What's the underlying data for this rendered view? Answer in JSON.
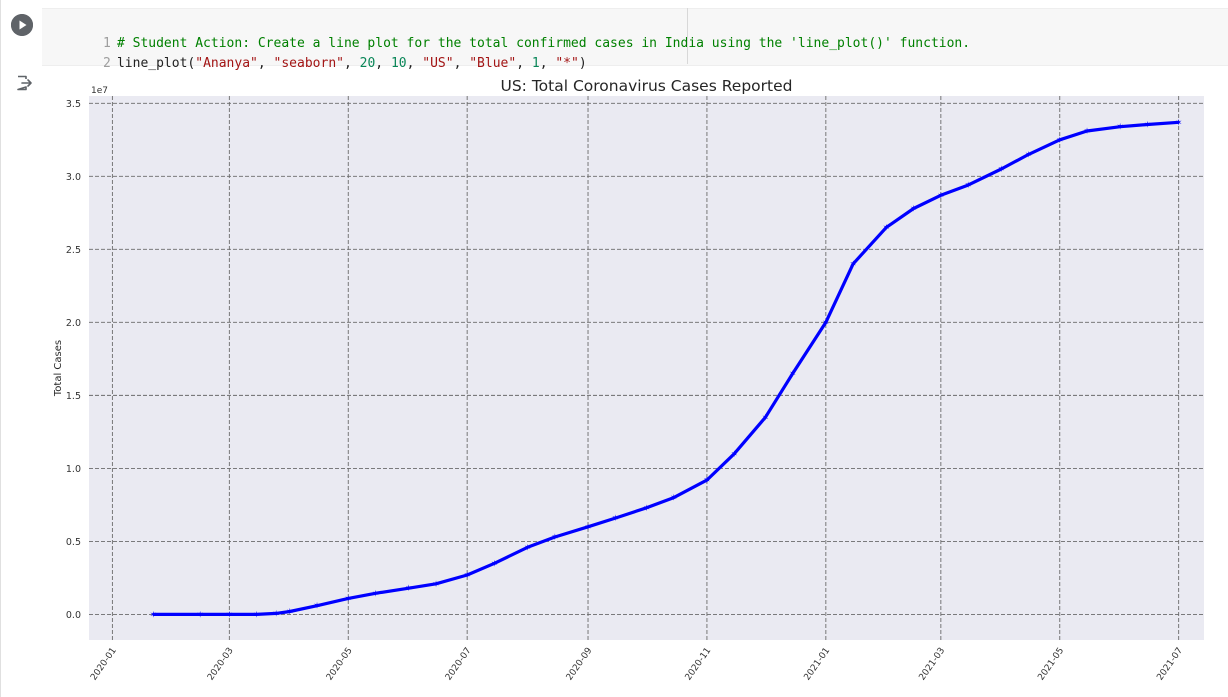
{
  "cell": {
    "code_lines": [
      {
        "number": "1",
        "comment": "# Student Action: Create a line plot for the total confirmed cases in India using the 'line_plot()' function."
      },
      {
        "number": "2",
        "fn": "line_plot(",
        "args": [
          {
            "kind": "str",
            "text": "\"Ananya\""
          },
          {
            "kind": "punc",
            "text": ", "
          },
          {
            "kind": "str",
            "text": "\"seaborn\""
          },
          {
            "kind": "punc",
            "text": ", "
          },
          {
            "kind": "num",
            "text": "20"
          },
          {
            "kind": "punc",
            "text": ", "
          },
          {
            "kind": "num",
            "text": "10"
          },
          {
            "kind": "punc",
            "text": ", "
          },
          {
            "kind": "str",
            "text": "\"US\""
          },
          {
            "kind": "punc",
            "text": ", "
          },
          {
            "kind": "str",
            "text": "\"Blue\""
          },
          {
            "kind": "punc",
            "text": ", "
          },
          {
            "kind": "num",
            "text": "1"
          },
          {
            "kind": "punc",
            "text": ", "
          },
          {
            "kind": "str",
            "text": "\"*\""
          },
          {
            "kind": "punc",
            "text": ")"
          }
        ]
      }
    ],
    "run_icon": "play-icon",
    "output_icon": "output-redirect-icon"
  },
  "chart_data": {
    "type": "line",
    "title": "US: Total Coronavirus Cases Reported",
    "xlabel": "",
    "ylabel": "Total Cases",
    "y_offset_label": "1e7",
    "x_tick_labels": [
      "2020-01",
      "2020-03",
      "2020-05",
      "2020-07",
      "2020-09",
      "2020-11",
      "2021-01",
      "2021-03",
      "2021-05",
      "2021-07"
    ],
    "x_ticks": [
      "2020-01-01",
      "2020-03-01",
      "2020-05-01",
      "2020-07-01",
      "2020-09-01",
      "2020-11-01",
      "2021-01-01",
      "2021-03-01",
      "2021-05-01",
      "2021-07-01"
    ],
    "y_tick_labels": [
      "0.0",
      "0.5",
      "1.0",
      "1.5",
      "2.0",
      "2.5",
      "3.0",
      "3.5"
    ],
    "y_ticks": [
      0,
      5000000,
      10000000,
      15000000,
      20000000,
      25000000,
      30000000,
      35000000
    ],
    "xlim": [
      "2019-12-20",
      "2021-07-14"
    ],
    "ylim": [
      -1750000,
      35500000
    ],
    "grid": true,
    "style": "seaborn",
    "line_color": "#0000ff",
    "marker": "*",
    "series": [
      {
        "points": [
          [
            "2020-01-22",
            0
          ],
          [
            "2020-02-15",
            0
          ],
          [
            "2020-03-01",
            100
          ],
          [
            "2020-03-15",
            5000
          ],
          [
            "2020-03-25",
            70000
          ],
          [
            "2020-04-01",
            200000
          ],
          [
            "2020-04-15",
            600000
          ],
          [
            "2020-05-01",
            1100000
          ],
          [
            "2020-05-15",
            1450000
          ],
          [
            "2020-06-01",
            1800000
          ],
          [
            "2020-06-15",
            2100000
          ],
          [
            "2020-07-01",
            2700000
          ],
          [
            "2020-07-15",
            3500000
          ],
          [
            "2020-08-01",
            4600000
          ],
          [
            "2020-08-15",
            5300000
          ],
          [
            "2020-09-01",
            6000000
          ],
          [
            "2020-09-15",
            6600000
          ],
          [
            "2020-10-01",
            7300000
          ],
          [
            "2020-10-15",
            8000000
          ],
          [
            "2020-11-01",
            9200000
          ],
          [
            "2020-11-15",
            11000000
          ],
          [
            "2020-12-01",
            13500000
          ],
          [
            "2020-12-15",
            16500000
          ],
          [
            "2021-01-01",
            20000000
          ],
          [
            "2021-01-15",
            24000000
          ],
          [
            "2021-02-01",
            26500000
          ],
          [
            "2021-02-15",
            27800000
          ],
          [
            "2021-03-01",
            28700000
          ],
          [
            "2021-03-15",
            29400000
          ],
          [
            "2021-04-01",
            30500000
          ],
          [
            "2021-04-15",
            31500000
          ],
          [
            "2021-05-01",
            32500000
          ],
          [
            "2021-05-15",
            33100000
          ],
          [
            "2021-06-01",
            33400000
          ],
          [
            "2021-06-15",
            33550000
          ],
          [
            "2021-07-01",
            33700000
          ]
        ]
      }
    ]
  }
}
